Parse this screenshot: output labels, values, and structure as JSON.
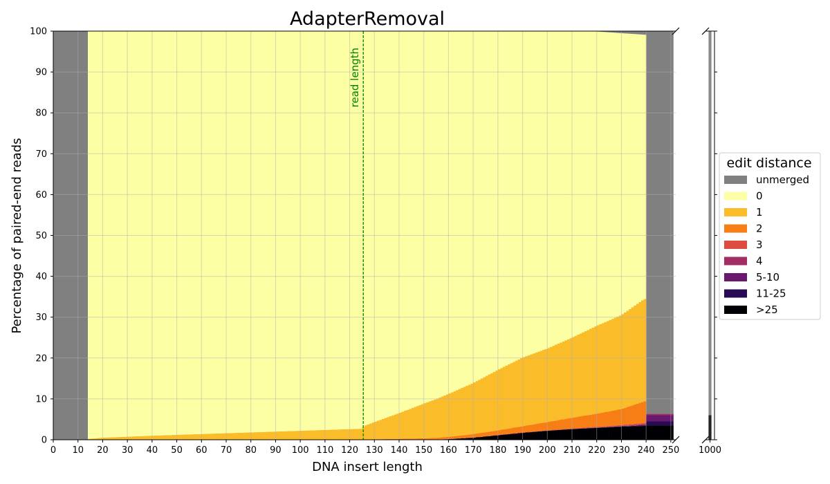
{
  "chart_data": {
    "type": "bar",
    "title": "AdapterRemoval",
    "xlabel": "DNA insert length",
    "ylabel": "Percentage of paired-end reads",
    "ylim": [
      0,
      100
    ],
    "xlim_main": [
      0,
      252
    ],
    "xlim_inset": [
      999,
      1001
    ],
    "yticks": [
      0,
      10,
      20,
      30,
      40,
      50,
      60,
      70,
      80,
      90,
      100
    ],
    "xticks": [
      0,
      10,
      20,
      30,
      40,
      50,
      60,
      70,
      80,
      90,
      100,
      110,
      120,
      130,
      140,
      150,
      160,
      170,
      180,
      190,
      200,
      210,
      220,
      230,
      240,
      250
    ],
    "inset_xticks": [
      1000
    ],
    "grid": true,
    "legend_title": "edit distance",
    "legend_position": "right",
    "annotation": {
      "text": "read length",
      "x": 125.5,
      "color": "#008000"
    },
    "series_order": [
      "unmerged",
      "0",
      "1",
      "2",
      "3",
      "4",
      "5-10",
      "11-25",
      ">25"
    ],
    "colors": {
      "unmerged": "#808080",
      "0": "#fcffa4",
      "1": "#fbbc2a",
      "2": "#f67e15",
      "3": "#dd4c3f",
      "4": "#a22d63",
      "5-10": "#6a176e",
      "11-25": "#280b54",
      ">25": "#000004"
    },
    "unmerged_ranges": [
      [
        0,
        14
      ],
      [
        240,
        251
      ]
    ],
    "merged_range": [
      14,
      240
    ],
    "right_tail": {
      "range": [
        240,
        251
      ],
      ">25": 3.5,
      "11-25": 1.0,
      "5-10": 1.5,
      "4": 0.3,
      "unmerged": 93.7
    },
    "profiles": {
      ">25": [
        [
          14,
          0
        ],
        [
          155,
          0
        ],
        [
          160,
          0.15
        ],
        [
          170,
          0.5
        ],
        [
          180,
          1.1
        ],
        [
          190,
          1.7
        ],
        [
          200,
          2.2
        ],
        [
          210,
          2.6
        ],
        [
          220,
          2.9
        ],
        [
          230,
          3.2
        ],
        [
          240,
          3.4
        ]
      ],
      "11-25": [
        [
          14,
          0
        ],
        [
          200,
          0
        ],
        [
          220,
          0.05
        ],
        [
          235,
          0.1
        ],
        [
          240,
          0.15
        ]
      ],
      "5-10": [
        [
          14,
          0
        ],
        [
          200,
          0
        ],
        [
          230,
          0.05
        ],
        [
          240,
          0.15
        ]
      ],
      "4": [
        [
          14,
          0
        ],
        [
          225,
          0
        ],
        [
          240,
          0.15
        ]
      ],
      "3": [
        [
          14,
          0
        ],
        [
          130,
          0
        ],
        [
          150,
          0.05
        ],
        [
          180,
          0.1
        ],
        [
          210,
          0.15
        ],
        [
          240,
          0.3
        ]
      ],
      "2": [
        [
          14,
          0
        ],
        [
          125,
          0
        ],
        [
          130,
          0.1
        ],
        [
          140,
          0.2
        ],
        [
          150,
          0.3
        ],
        [
          160,
          0.5
        ],
        [
          170,
          0.8
        ],
        [
          180,
          1.1
        ],
        [
          190,
          1.5
        ],
        [
          200,
          2.0
        ],
        [
          210,
          2.6
        ],
        [
          220,
          3.2
        ],
        [
          230,
          3.9
        ],
        [
          240,
          5.4
        ]
      ],
      "1": [
        [
          14,
          0.2
        ],
        [
          20,
          0.5
        ],
        [
          40,
          1.0
        ],
        [
          60,
          1.4
        ],
        [
          80,
          1.8
        ],
        [
          100,
          2.2
        ],
        [
          125,
          2.7
        ],
        [
          126,
          3.4
        ],
        [
          140,
          6.3
        ],
        [
          150,
          8.5
        ],
        [
          160,
          10.5
        ],
        [
          170,
          12.5
        ],
        [
          180,
          14.8
        ],
        [
          190,
          16.8
        ],
        [
          200,
          18.0
        ],
        [
          210,
          19.6
        ],
        [
          220,
          21.5
        ],
        [
          230,
          23.0
        ],
        [
          239,
          25.0
        ]
      ],
      "unmerged_top": [
        [
          14,
          0
        ],
        [
          218,
          0
        ],
        [
          230,
          0.5
        ],
        [
          240,
          0.9
        ]
      ]
    },
    "inset": {
      "x": 1000,
      "unmerged": 94.0,
      ">25": 6.0
    }
  }
}
